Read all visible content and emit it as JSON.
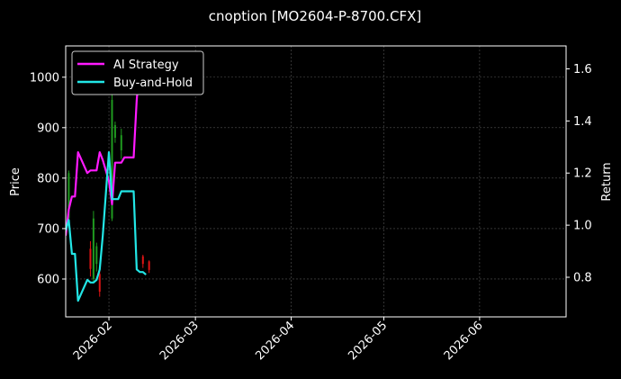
{
  "chart_data": {
    "type": "line",
    "title": "cnoption [MO2604-P-8700.CFX]",
    "left_axis": {
      "label": "Price",
      "ylim": [
        525,
        1062
      ],
      "ticks": [
        600,
        700,
        800,
        900,
        1000
      ],
      "tick_labels": [
        "600",
        "700",
        "800",
        "900",
        "1000"
      ]
    },
    "right_axis": {
      "label": "Return",
      "ylim": [
        0.648,
        1.688
      ],
      "ticks": [
        0.8,
        1.0,
        1.2,
        1.4,
        1.6
      ],
      "tick_labels": [
        "0.8",
        "1.0",
        "1.2",
        "1.4",
        "1.6"
      ]
    },
    "x_axis": {
      "xlim": [
        "2026-01-18",
        "2026-06-29"
      ],
      "ticks": [
        "2026-02-01",
        "2026-03-01",
        "2026-04-01",
        "2026-05-01",
        "2026-06-01"
      ],
      "tick_labels": [
        "2026-02",
        "2026-03",
        "2026-04",
        "2026-05",
        "2026-06"
      ]
    },
    "grid": true,
    "legend": "top-left",
    "colors": {
      "background": "#000000",
      "ai_strategy": "#ff1aff",
      "buy_and_hold": "#22e6e6",
      "candle_up": "#1f9a1f",
      "candle_down": "#e01414",
      "grid": "#555555",
      "axis": "#ffffff"
    },
    "series": [
      {
        "name": "AI Strategy",
        "axis": "right",
        "x": [
          "2026-01-18",
          "2026-01-19",
          "2026-01-20",
          "2026-01-21",
          "2026-01-22",
          "2026-01-25",
          "2026-01-26",
          "2026-01-27",
          "2026-01-28",
          "2026-01-29",
          "2026-01-30",
          "2026-02-01",
          "2026-02-02",
          "2026-02-03",
          "2026-02-04",
          "2026-02-05",
          "2026-02-06",
          "2026-02-08",
          "2026-02-09",
          "2026-02-10",
          "2026-02-11",
          "2026-02-12",
          "2026-02-13"
        ],
        "values": [
          0.96,
          1.06,
          1.11,
          1.11,
          1.28,
          1.2,
          1.21,
          1.21,
          1.21,
          1.28,
          1.25,
          1.17,
          1.08,
          1.24,
          1.24,
          1.24,
          1.26,
          1.26,
          1.26,
          1.48,
          1.62,
          1.62,
          1.62
        ]
      },
      {
        "name": "Buy-and-Hold",
        "axis": "right",
        "x": [
          "2026-01-18",
          "2026-01-19",
          "2026-01-20",
          "2026-01-21",
          "2026-01-22",
          "2026-01-25",
          "2026-01-26",
          "2026-01-27",
          "2026-01-28",
          "2026-01-29",
          "2026-01-30",
          "2026-02-01",
          "2026-02-02",
          "2026-02-03",
          "2026-02-04",
          "2026-02-05",
          "2026-02-06",
          "2026-02-08",
          "2026-02-09",
          "2026-02-10",
          "2026-02-11",
          "2026-02-12",
          "2026-02-13"
        ],
        "values": [
          0.98,
          1.02,
          0.89,
          0.89,
          0.71,
          0.79,
          0.78,
          0.78,
          0.79,
          0.83,
          0.96,
          1.28,
          1.1,
          1.1,
          1.1,
          1.13,
          1.13,
          1.13,
          1.13,
          0.83,
          0.82,
          0.82,
          0.81
        ]
      }
    ],
    "candles": [
      {
        "x": "2026-01-19",
        "open": 720,
        "close": 810,
        "high": 815,
        "low": 700
      },
      {
        "x": "2026-01-26",
        "open": 660,
        "close": 620,
        "high": 675,
        "low": 605
      },
      {
        "x": "2026-01-27",
        "open": 600,
        "close": 720,
        "high": 735,
        "low": 595
      },
      {
        "x": "2026-01-28",
        "open": 630,
        "close": 665,
        "high": 672,
        "low": 615
      },
      {
        "x": "2026-01-29",
        "open": 610,
        "close": 575,
        "high": 618,
        "low": 565
      },
      {
        "x": "2026-02-02",
        "open": 720,
        "close": 955,
        "high": 975,
        "low": 715
      },
      {
        "x": "2026-02-03",
        "open": 880,
        "close": 905,
        "high": 912,
        "low": 870
      },
      {
        "x": "2026-02-05",
        "open": 855,
        "close": 885,
        "high": 898,
        "low": 838
      },
      {
        "x": "2026-02-12",
        "open": 645,
        "close": 630,
        "high": 648,
        "low": 622
      },
      {
        "x": "2026-02-14",
        "open": 635,
        "close": 618,
        "high": 637,
        "low": 612
      }
    ]
  }
}
